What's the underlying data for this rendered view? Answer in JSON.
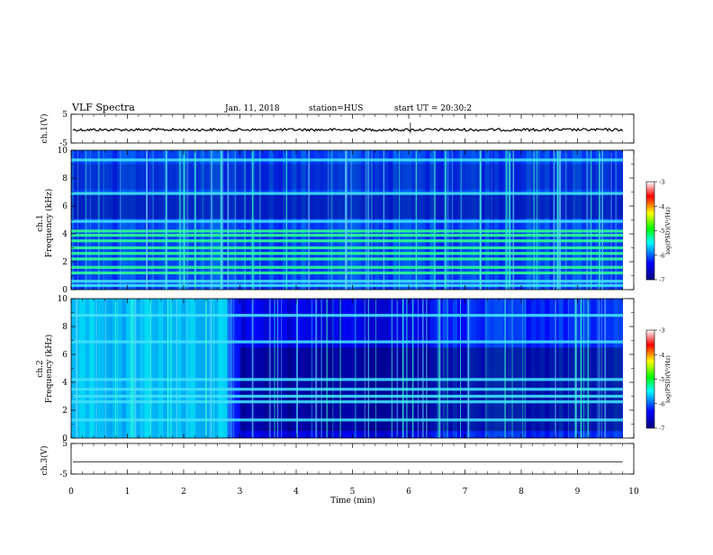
{
  "header": {
    "title": "VLF Spectra",
    "date": "Jan. 11, 2018",
    "station": "station=HUS",
    "start": "start UT = 20:30:2"
  },
  "chart_data": {
    "type": "heatmap",
    "title": "VLF Spectra",
    "xlabel": "Time (min)",
    "xlim": [
      0,
      10
    ],
    "xticks": [
      "0",
      "1",
      "2",
      "3",
      "4",
      "5",
      "6",
      "7",
      "8",
      "9",
      "10"
    ],
    "panels": [
      {
        "name": "ch1-waveform",
        "kind": "line",
        "ylabel": "ch.1(V)",
        "ylim": [
          -5,
          5
        ],
        "yticks": [
          "5",
          "-5"
        ],
        "baseline": -0.4
      },
      {
        "name": "ch1-spectrogram",
        "kind": "heatmap",
        "ylabel_top": "ch.1",
        "ylabel": "Frequency (kHz)",
        "ylim": [
          0,
          10
        ],
        "yticks": [
          "0",
          "2",
          "4",
          "6",
          "8",
          "10"
        ],
        "bands_khz": [
          0.3,
          0.6,
          1.2,
          1.6,
          2.2,
          2.6,
          3.0,
          3.5,
          3.9,
          4.2,
          4.9,
          6.9,
          9.3
        ]
      },
      {
        "name": "ch2-spectrogram",
        "kind": "heatmap",
        "ylabel_top": "ch.2",
        "ylabel": "Frequency (kHz)",
        "ylim": [
          0,
          10
        ],
        "yticks": [
          "0",
          "2",
          "4",
          "6",
          "8",
          "10"
        ],
        "bands_khz": [
          1.3,
          2.6,
          3.0,
          3.5,
          4.2,
          6.9,
          8.8
        ]
      },
      {
        "name": "ch3-waveform",
        "kind": "line",
        "ylabel": "ch.3(V)",
        "ylim": [
          -5,
          5
        ],
        "yticks": [
          "5",
          "-5"
        ],
        "baseline": -1.0
      }
    ],
    "colorbar": {
      "label": "log(PSD)(V²/Hz)",
      "range": [
        -7,
        -3
      ],
      "ticks": [
        "-3",
        "-4",
        "-5",
        "-6",
        "-7"
      ],
      "colors": [
        "#000080",
        "#0000ff",
        "#00ffff",
        "#00ff00",
        "#ffff00",
        "#ff0000",
        "#ffffff"
      ]
    }
  }
}
